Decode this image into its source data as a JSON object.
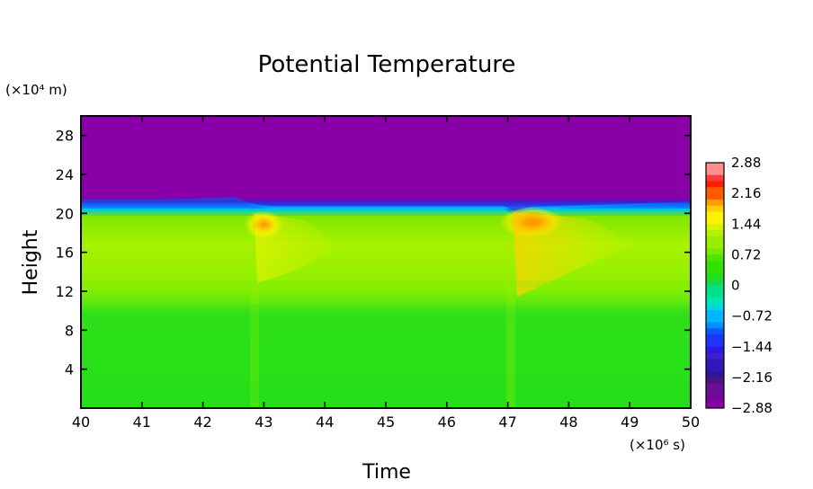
{
  "chart_data": {
    "type": "heatmap",
    "title": "Potential Temperature",
    "xlabel": "Time",
    "ylabel": "Height",
    "x_unit_label": "(×10⁶ s)",
    "y_unit_label": "(×10⁴ m)",
    "xlim": [
      40,
      50
    ],
    "ylim": [
      0,
      30
    ],
    "x_ticks": [
      "40",
      "41",
      "42",
      "43",
      "44",
      "45",
      "46",
      "47",
      "48",
      "49",
      "50"
    ],
    "y_ticks": [
      "4",
      "8",
      "12",
      "16",
      "20",
      "24",
      "28"
    ],
    "colorbar_labels": [
      "2.88",
      "2.16",
      "1.44",
      "0.72",
      "0",
      "−0.72",
      "−1.44",
      "−2.16",
      "−2.88"
    ],
    "colorbar_range": [
      -2.88,
      2.88
    ],
    "features": [
      {
        "region": "upper layer",
        "time_range": [
          40,
          50
        ],
        "height_range": [
          21,
          30
        ],
        "value": -2.88
      },
      {
        "region": "lower layer",
        "time_range": [
          40,
          50
        ],
        "height_range": [
          0,
          12
        ],
        "value": 0
      },
      {
        "region": "middle layer",
        "time_range": [
          40,
          50
        ],
        "height_range": [
          12,
          20
        ],
        "value": 0.5
      },
      {
        "region": "warm anomaly",
        "time": 43.0,
        "height": 19.5,
        "value": 1.8
      },
      {
        "region": "warm anomaly",
        "time": 47.3,
        "height": 19.0,
        "value": 2.5
      }
    ],
    "grid": false
  },
  "colors": {
    "colormap": [
      "#8a00a8",
      "#3c1fd0",
      "#0f57ff",
      "#00b7ff",
      "#00e59a",
      "#26e000",
      "#a7f200",
      "#fff200",
      "#ff9a00",
      "#ff1e00",
      "#ff8f8f"
    ]
  }
}
